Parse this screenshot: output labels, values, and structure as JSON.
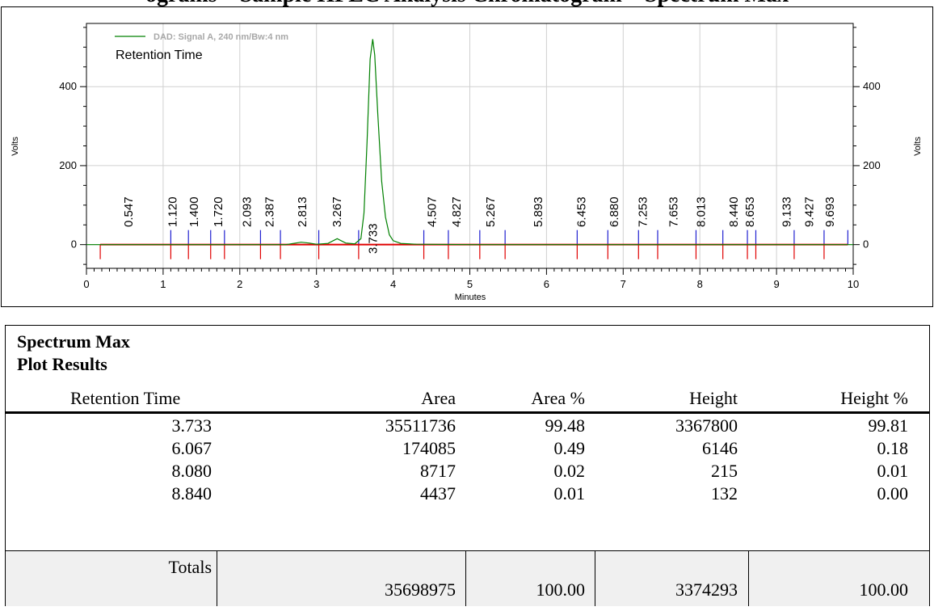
{
  "page": {
    "heading": "ograms – Sample HPLC Analysis Chromatogram – Spectrum Max"
  },
  "chart_data": {
    "type": "line",
    "legend_label": "DAD: Signal A, 240 nm/Bw:4 nm",
    "legend_title": "Retention Time",
    "xlabel": "Minutes",
    "ylabel_left": "Volts",
    "ylabel_right": "Volts",
    "xlim": [
      0,
      10
    ],
    "ylim": [
      -60,
      560
    ],
    "x_ticks": [
      0,
      1,
      2,
      3,
      4,
      5,
      6,
      7,
      8,
      9,
      10
    ],
    "y_ticks": [
      0,
      200,
      400
    ],
    "grid": true,
    "line_color": "#008000",
    "baseline_color": "#e00000",
    "start_marker_color": "#e00000",
    "end_marker_color": "#2020d0",
    "peak_labels": [
      {
        "rt": "0.547",
        "x": 0.547
      },
      {
        "rt": "1.120",
        "x": 1.12
      },
      {
        "rt": "1.400",
        "x": 1.4
      },
      {
        "rt": "1.720",
        "x": 1.72
      },
      {
        "rt": "2.093",
        "x": 2.093
      },
      {
        "rt": "2.387",
        "x": 2.387
      },
      {
        "rt": "2.813",
        "x": 2.813
      },
      {
        "rt": "3.267",
        "x": 3.267
      },
      {
        "rt": "3.733",
        "x": 3.733
      },
      {
        "rt": "4.507",
        "x": 4.507
      },
      {
        "rt": "4.827",
        "x": 4.827
      },
      {
        "rt": "5.267",
        "x": 5.267
      },
      {
        "rt": "5.893",
        "x": 5.893
      },
      {
        "rt": "6.453",
        "x": 6.453
      },
      {
        "rt": "6.880",
        "x": 6.88
      },
      {
        "rt": "7.253",
        "x": 7.253
      },
      {
        "rt": "7.653",
        "x": 7.653
      },
      {
        "rt": "8.013",
        "x": 8.013
      },
      {
        "rt": "8.440",
        "x": 8.44
      },
      {
        "rt": "8.653",
        "x": 8.653
      },
      {
        "rt": "9.133",
        "x": 9.133
      },
      {
        "rt": "9.427",
        "x": 9.427
      },
      {
        "rt": "9.693",
        "x": 9.693
      }
    ],
    "start_markers": [
      0.18,
      1.1,
      1.33,
      1.62,
      1.8,
      2.27,
      2.53,
      3.03,
      3.55,
      4.4,
      4.72,
      5.13,
      5.46,
      6.4,
      6.8,
      7.2,
      7.45,
      7.95,
      8.3,
      8.62,
      8.73,
      9.23,
      9.62
    ],
    "end_markers": [
      1.1,
      1.33,
      1.62,
      1.8,
      2.27,
      2.53,
      3.03,
      3.55,
      4.4,
      4.72,
      5.13,
      5.46,
      6.4,
      6.8,
      7.2,
      7.45,
      7.95,
      8.3,
      8.62,
      8.73,
      9.23,
      9.62,
      9.93
    ],
    "signal": [
      {
        "x": 0.0,
        "y": 0
      },
      {
        "x": 2.6,
        "y": 0
      },
      {
        "x": 2.7,
        "y": 3
      },
      {
        "x": 2.8,
        "y": 6
      },
      {
        "x": 2.9,
        "y": 4
      },
      {
        "x": 3.0,
        "y": 1
      },
      {
        "x": 3.15,
        "y": 3
      },
      {
        "x": 3.27,
        "y": 15
      },
      {
        "x": 3.38,
        "y": 4
      },
      {
        "x": 3.5,
        "y": 2
      },
      {
        "x": 3.58,
        "y": 15
      },
      {
        "x": 3.62,
        "y": 80
      },
      {
        "x": 3.66,
        "y": 260
      },
      {
        "x": 3.7,
        "y": 470
      },
      {
        "x": 3.733,
        "y": 520
      },
      {
        "x": 3.76,
        "y": 480
      },
      {
        "x": 3.8,
        "y": 330
      },
      {
        "x": 3.85,
        "y": 160
      },
      {
        "x": 3.9,
        "y": 70
      },
      {
        "x": 3.95,
        "y": 25
      },
      {
        "x": 4.0,
        "y": 10
      },
      {
        "x": 4.1,
        "y": 3
      },
      {
        "x": 4.3,
        "y": 1
      },
      {
        "x": 5.0,
        "y": 0
      },
      {
        "x": 10.0,
        "y": 0
      }
    ]
  },
  "results": {
    "title_line1": "Spectrum Max",
    "title_line2": "Plot Results",
    "columns": [
      "Retention Time",
      "Area",
      "Area %",
      "Height",
      "Height %"
    ],
    "rows": [
      [
        "3.733",
        "35511736",
        "99.48",
        "3367800",
        "99.81"
      ],
      [
        "6.067",
        "174085",
        "0.49",
        "6146",
        "0.18"
      ],
      [
        "8.080",
        "8717",
        "0.02",
        "215",
        "0.01"
      ],
      [
        "8.840",
        "4437",
        "0.01",
        "132",
        "0.00"
      ]
    ],
    "totals": {
      "label": "Totals",
      "area": "35698975",
      "area_pct": "100.00",
      "height": "3374293",
      "height_pct": "100.00"
    }
  }
}
